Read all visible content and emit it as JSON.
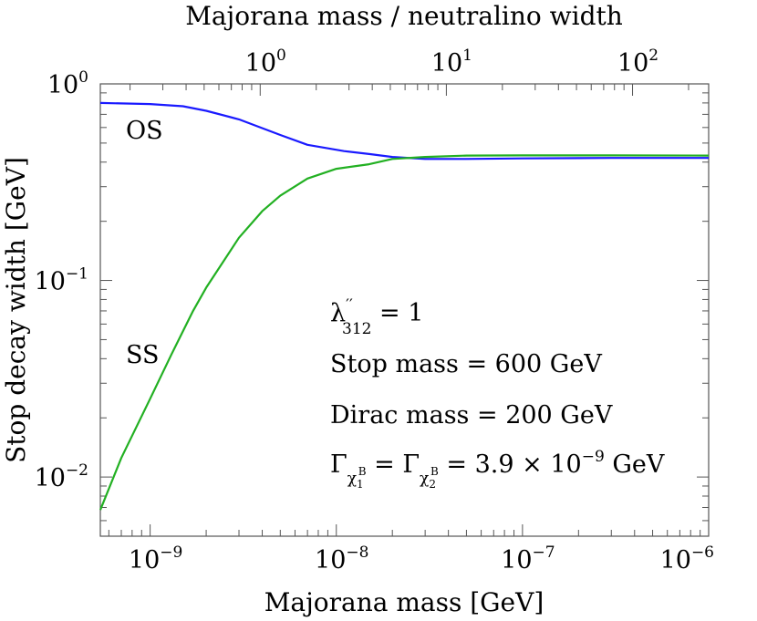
{
  "chart_data": {
    "type": "line",
    "xlabel": "Majorana mass [GeV]",
    "top_xlabel": "Majorana mass / neutralino width",
    "ylabel": "Stop decay width [GeV]",
    "xscale": "log",
    "yscale": "log",
    "xlim": [
      5.4e-10,
      1e-06
    ],
    "ylim": [
      0.005,
      1.0
    ],
    "bottom_ticks": [
      {
        "base": "10",
        "exp": "−9",
        "value": 1e-09
      },
      {
        "base": "10",
        "exp": "−8",
        "value": 1e-08
      },
      {
        "base": "10",
        "exp": "−7",
        "value": 1e-07
      },
      {
        "base": "10",
        "exp": "−6",
        "value": 1e-06
      }
    ],
    "top_ticks": [
      {
        "base": "10",
        "exp": "0",
        "value": 3.9e-09
      },
      {
        "base": "10",
        "exp": "1",
        "value": 3.9e-08
      },
      {
        "base": "10",
        "exp": "2",
        "value": 3.9e-07
      }
    ],
    "left_ticks": [
      {
        "base": "10",
        "exp": "0",
        "value": 1.0
      },
      {
        "base": "10",
        "exp": "−1",
        "value": 0.1
      },
      {
        "base": "10",
        "exp": "−2",
        "value": 0.01
      }
    ],
    "series": [
      {
        "name": "OS",
        "color": "#1a1aff",
        "x": [
          5.4e-10,
          1e-09,
          1.5e-09,
          2e-09,
          3e-09,
          5e-09,
          7e-09,
          1.1e-08,
          1.5e-08,
          2e-08,
          3e-08,
          5e-08,
          1e-07,
          3e-07,
          1e-06
        ],
        "y": [
          0.8,
          0.79,
          0.77,
          0.73,
          0.66,
          0.55,
          0.49,
          0.455,
          0.44,
          0.425,
          0.415,
          0.415,
          0.418,
          0.42,
          0.42
        ]
      },
      {
        "name": "SS",
        "color": "#22b022",
        "x": [
          5.4e-10,
          7e-10,
          1e-09,
          1.3e-09,
          1.7e-09,
          2e-09,
          3e-09,
          4e-09,
          5e-09,
          7e-09,
          1e-08,
          1.5e-08,
          2e-08,
          3e-08,
          5e-08,
          1e-07,
          3e-07,
          1e-06
        ],
        "y": [
          0.0068,
          0.0125,
          0.025,
          0.042,
          0.07,
          0.092,
          0.165,
          0.225,
          0.27,
          0.33,
          0.37,
          0.39,
          0.415,
          0.425,
          0.432,
          0.433,
          0.433,
          0.432
        ]
      }
    ],
    "grid": false,
    "legend": "none"
  },
  "curve_labels": {
    "os": "OS",
    "ss": "SS"
  },
  "annotations": {
    "coupling_symbol": "λ",
    "coupling_primes": "′′",
    "coupling_sub": "312",
    "coupling_rest": " = 1",
    "stop_mass": "Stop mass = 600 GeV",
    "dirac_mass": "Dirac mass = 200 GeV",
    "gamma_symbol": "Γ",
    "gamma_sub1_chi": "χ",
    "gamma_sub1_idx": "1",
    "gamma_sup": "B",
    "gamma_equals": " = ",
    "gamma_sub2_idx": "2",
    "gamma_value": " = 3.9 × 10",
    "gamma_exp": "−9",
    "gamma_unit": " GeV"
  }
}
